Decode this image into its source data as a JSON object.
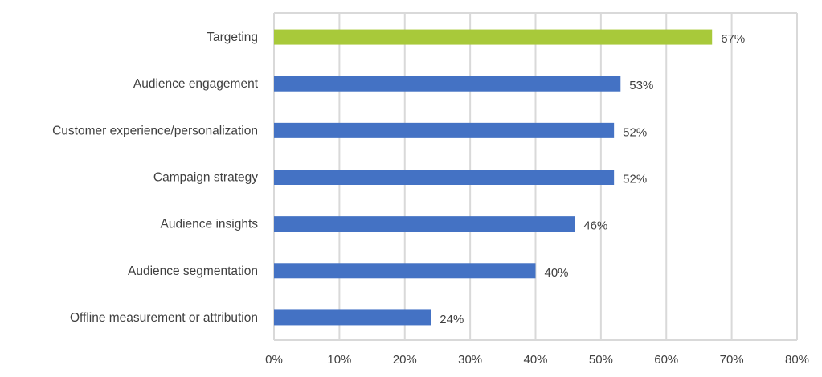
{
  "chart_data": {
    "type": "bar",
    "orientation": "horizontal",
    "categories": [
      "Targeting",
      "Audience engagement",
      "Customer experience/personalization",
      "Campaign strategy",
      "Audience insights",
      "Audience segmentation",
      "Offline measurement or attribution"
    ],
    "values": [
      67,
      53,
      52,
      52,
      46,
      40,
      24
    ],
    "value_labels": [
      "67%",
      "53%",
      "52%",
      "52%",
      "46%",
      "40%",
      "24%"
    ],
    "xlim": [
      0,
      80
    ],
    "xticks": [
      "0%",
      "10%",
      "20%",
      "30%",
      "40%",
      "50%",
      "60%",
      "70%",
      "80%"
    ],
    "grid": true,
    "legend": "none",
    "title": "",
    "xlabel": "",
    "ylabel": "",
    "colors": {
      "highlight": "#A8C93A",
      "default": "#4472C4",
      "grid": "#D9D9D9"
    },
    "highlight_index": 0
  }
}
